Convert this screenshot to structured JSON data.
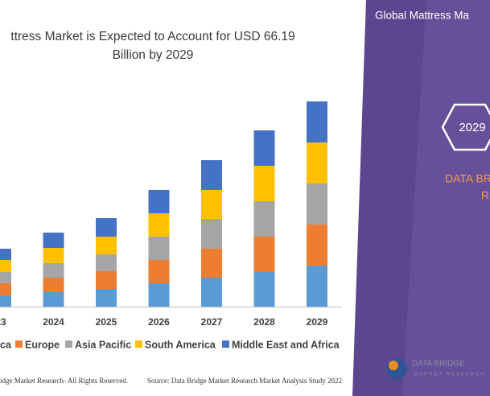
{
  "chart_data": {
    "type": "bar",
    "stacked": true,
    "title": [
      "ttress Market is Expected to Account for USD 66.19",
      "Billion by 2029"
    ],
    "categories": [
      "23",
      "2024",
      "2025",
      "2026",
      "2027",
      "2028",
      "2029"
    ],
    "series": [
      {
        "name": "ca",
        "color": "#5b9bd5",
        "values": [
          14,
          18,
          22,
          29,
          36,
          43,
          51
        ]
      },
      {
        "name": "Europe",
        "color": "#ed7d31",
        "values": [
          15,
          18,
          22,
          29,
          36,
          44,
          51
        ]
      },
      {
        "name": "Asia Pacific",
        "color": "#a5a5a5",
        "values": [
          14,
          18,
          21,
          29,
          37,
          44,
          51
        ]
      },
      {
        "name": "South America",
        "color": "#ffc000",
        "values": [
          15,
          19,
          22,
          29,
          36,
          44,
          51
        ]
      },
      {
        "name": "Middle East and Africa",
        "color": "#4472c4",
        "values": [
          14,
          19,
          23,
          29,
          37,
          44,
          51
        ]
      }
    ],
    "footer": {
      "copyright": "idge Market Research- All Rights Reserved.",
      "source": "Source: Data Bridge Market Research Market Analysis Study 2022"
    },
    "panel": {
      "heading": "Global Mattress Ma",
      "year": "2029",
      "brand_line1": "DATA BR",
      "brand_line2": "R"
    },
    "logo": {
      "name": "DATA BRIDGE",
      "tagline": "MARKET RESEARCH"
    }
  }
}
